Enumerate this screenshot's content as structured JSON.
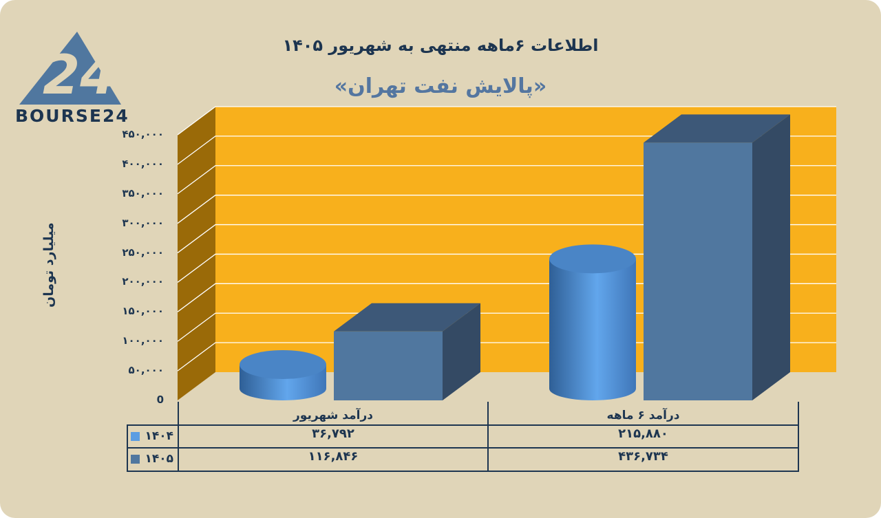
{
  "title": "اطلاعات ۶ماهه منتهی به شهریور ۱۴۰۵",
  "subtitle": "«پالایش نفت تهران»",
  "logo_text": "BOURSE24",
  "colors": {
    "background": "#e0d5b8",
    "plot_back": "#f8b01c",
    "plot_side": "#9a6a08",
    "series_1404": "#5b9de2",
    "series_1405": "#50779f",
    "text": "#1d3550"
  },
  "chart_data": {
    "type": "bar",
    "title": "اطلاعات ۶ماهه منتهی به شهریور ۱۴۰۵",
    "subtitle": "«پالایش نفت تهران»",
    "ylabel": "میلیارد تومان",
    "ylim": [
      0,
      450000
    ],
    "grid": true,
    "yticks": [
      {
        "value": 0,
        "label": "0"
      },
      {
        "value": 50000,
        "label": "۵۰,۰۰۰"
      },
      {
        "value": 100000,
        "label": "۱۰۰,۰۰۰"
      },
      {
        "value": 150000,
        "label": "۱۵۰,۰۰۰"
      },
      {
        "value": 200000,
        "label": "۲۰۰,۰۰۰"
      },
      {
        "value": 250000,
        "label": "۲۵۰,۰۰۰"
      },
      {
        "value": 300000,
        "label": "۳۰۰,۰۰۰"
      },
      {
        "value": 350000,
        "label": "۳۵۰,۰۰۰"
      },
      {
        "value": 400000,
        "label": "۴۰۰,۰۰۰"
      },
      {
        "value": 450000,
        "label": "۴۵۰,۰۰۰"
      }
    ],
    "categories": [
      "درآمد شهریور",
      "درآمد ۶ ماهه"
    ],
    "series": [
      {
        "name": "۱۴۰۴",
        "values": [
          36792,
          215880
        ],
        "labels": [
          "۳۶,۷۹۲",
          "۲۱۵,۸۸۰"
        ],
        "shape": "cylinder"
      },
      {
        "name": "۱۴۰۵",
        "values": [
          116846,
          436734
        ],
        "labels": [
          "۱۱۶,۸۴۶",
          "۴۳۶,۷۳۴"
        ],
        "shape": "box"
      }
    ]
  }
}
